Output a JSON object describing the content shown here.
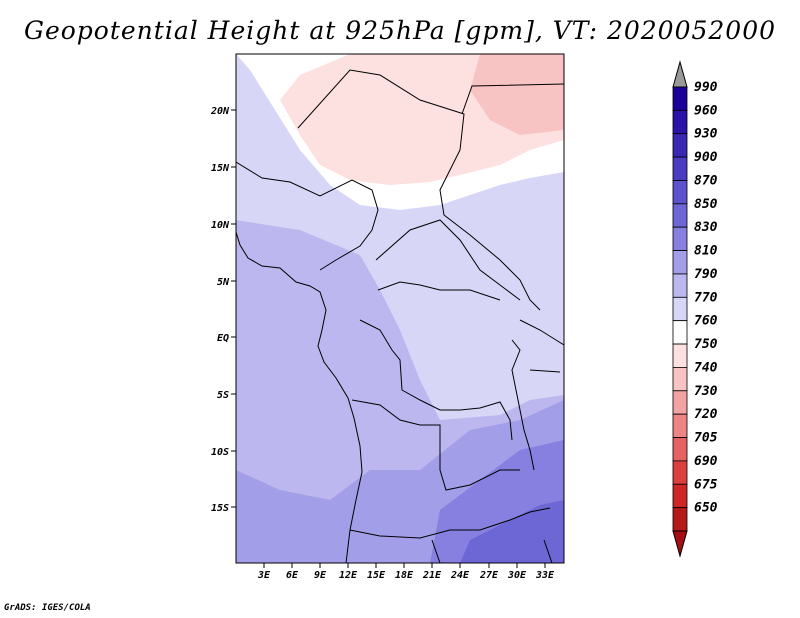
{
  "title": "Geopotential Height at 925hPa [gpm], VT: 2020052000",
  "credit": "GrADS: IGES/COLA",
  "map": {
    "lat_labels": [
      "20N",
      "15N",
      "10N",
      "5N",
      "EQ",
      "5S",
      "10S",
      "15S"
    ],
    "lon_labels": [
      "3E",
      "6E",
      "9E",
      "12E",
      "15E",
      "18E",
      "21E",
      "24E",
      "27E",
      "30E",
      "33E"
    ],
    "lon_range": [
      0,
      35
    ],
    "lat_range": [
      -20,
      25
    ]
  },
  "colorbar": {
    "levels": [
      "990",
      "960",
      "930",
      "900",
      "870",
      "850",
      "830",
      "810",
      "790",
      "770",
      "760",
      "750",
      "740",
      "730",
      "720",
      "705",
      "690",
      "675",
      "650"
    ],
    "colors": [
      "#1b0099",
      "#2a13a6",
      "#3a27b3",
      "#4a3cc0",
      "#5b52cc",
      "#6d67d6",
      "#8780e0",
      "#a39ee8",
      "#bcb8ef",
      "#d8d6f7",
      "#ffffff",
      "#fde0e0",
      "#f8c3c3",
      "#f2a3a3",
      "#ec8484",
      "#e56262",
      "#db4040",
      "#cc2626",
      "#b51a1a"
    ],
    "top_arrow_color": "#999999",
    "bottom_arrow_color": "#a50f15"
  }
}
